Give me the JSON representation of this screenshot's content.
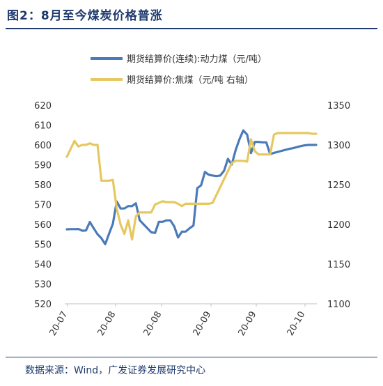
{
  "title": "图2：8月至今煤炭价格普涨",
  "source": "数据来源：Wind，广发证券发展研究中心",
  "chart_data": {
    "type": "line",
    "x_tick_labels": [
      "20-07",
      "20-08",
      "20-08",
      "20-09",
      "20-09",
      "20-10"
    ],
    "y_left": {
      "ylim": [
        520,
        620
      ],
      "ticks": [
        520,
        530,
        540,
        550,
        560,
        570,
        580,
        590,
        600,
        610,
        620
      ]
    },
    "y_right": {
      "ylim": [
        1100,
        1350
      ],
      "ticks": [
        1100,
        1150,
        1200,
        1250,
        1300,
        1350
      ]
    },
    "legend_placement": "top",
    "grid": false,
    "series": [
      {
        "name": "期货结算价(连续):动力煤（元/吨）",
        "axis": "left",
        "color": "#4a7ab8",
        "values": [
          557.5,
          557.6,
          557.6,
          557.7,
          556.8,
          556.9,
          561.2,
          558.0,
          555.0,
          553.0,
          550.0,
          555.3,
          560.3,
          571.5,
          568.0,
          568.0,
          569.2,
          569.2,
          570.6,
          562.1,
          560.0,
          558.0,
          556.0,
          555.7,
          561.3,
          561.3,
          562.0,
          562.0,
          559.0,
          553.4,
          556.3,
          556.4,
          558.0,
          559.4,
          578.2,
          579.7,
          586.4,
          585.0,
          584.6,
          584.3,
          584.6,
          587.0,
          593.0,
          590.1,
          597.3,
          602.8,
          607.3,
          605.2,
          595.9,
          601.5,
          601.5,
          601.3,
          601.3,
          595.3,
          596.0,
          596.5,
          597.0,
          597.5,
          598.0,
          598.4,
          598.9,
          599.4,
          599.8,
          600.0,
          600.0,
          600.0
        ]
      },
      {
        "name": "期货结算价:焦煤（元/吨 右轴）",
        "axis": "right",
        "color": "#e6c860",
        "values": [
          1285,
          1295,
          1305,
          1298,
          1300,
          1300,
          1302,
          1300,
          1300,
          1255,
          1255,
          1255,
          1256,
          1220,
          1200,
          1188,
          1205,
          1181,
          1210,
          1215,
          1215,
          1215,
          1215,
          1225,
          1227,
          1229,
          1228,
          1228,
          1228,
          1226,
          1223,
          1226,
          1226,
          1226,
          1226,
          1226,
          1226,
          1226,
          1227,
          1237,
          1247,
          1257,
          1267,
          1277,
          1280,
          1280,
          1280,
          1279,
          1307,
          1292,
          1288,
          1288,
          1288,
          1288,
          1313,
          1315,
          1315,
          1315,
          1315,
          1315,
          1315,
          1315,
          1315,
          1315,
          1314,
          1314
        ]
      }
    ]
  }
}
